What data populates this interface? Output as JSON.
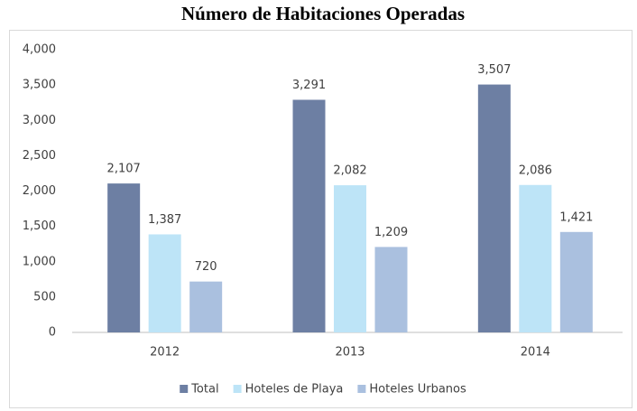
{
  "chart_data": {
    "type": "bar",
    "title": "Número de Habitaciones Operadas",
    "categories": [
      "2012",
      "2013",
      "2014"
    ],
    "series": [
      {
        "name": "Total",
        "color": "#6d7fa3",
        "values": [
          2107,
          3291,
          3507
        ],
        "value_labels": [
          "2,107",
          "3,291",
          "3,507"
        ]
      },
      {
        "name": "Hoteles de Playa",
        "color": "#bde4f7",
        "values": [
          1387,
          2082,
          2086
        ],
        "value_labels": [
          "1,387",
          "2,082",
          "2,086"
        ]
      },
      {
        "name": "Hoteles Urbanos",
        "color": "#aac0df",
        "values": [
          720,
          1209,
          1421
        ],
        "value_labels": [
          "720",
          "1,209",
          "1,421"
        ]
      }
    ],
    "ylim": [
      0,
      4000
    ],
    "yticks": [
      0,
      500,
      {
        "value": 1000,
        "label": "1,000"
      },
      {
        "value": 1500,
        "label": "1,500"
      },
      {
        "value": 2000,
        "label": "2,000"
      },
      {
        "value": 2500,
        "label": "2,500"
      },
      {
        "value": 3000,
        "label": "3,000"
      },
      {
        "value": 3500,
        "label": "3,500"
      },
      {
        "value": 4000,
        "label": "4,000"
      }
    ],
    "grid": false,
    "legend": "bottom"
  }
}
